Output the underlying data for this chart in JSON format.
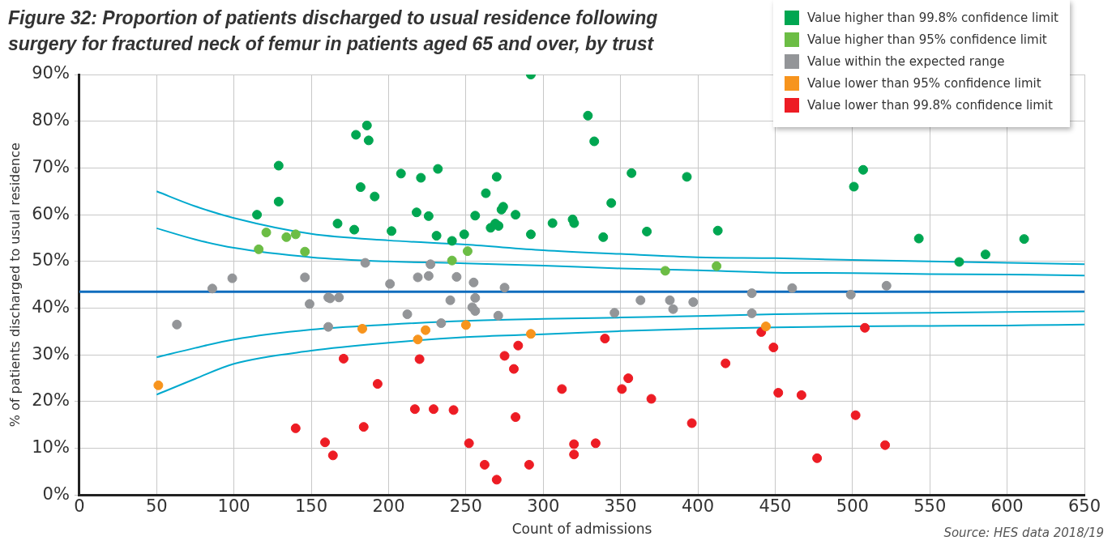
{
  "chart_data": {
    "type": "scatter",
    "title": "Figure 32: Proportion of patients discharged to usual residence following surgery for fractured neck of femur in patients aged 65 and over, by trust",
    "xlabel": "Count of admissions",
    "ylabel": "% of patients discharged to usual residence",
    "annotations": [
      "Source: HES data 2018/19"
    ],
    "xlim": [
      0,
      650
    ],
    "xticks": [
      0,
      50,
      100,
      150,
      200,
      250,
      300,
      350,
      400,
      450,
      500,
      550,
      600,
      650
    ],
    "ylim": [
      0,
      90
    ],
    "yticks": [
      {
        "value": 0,
        "label": "0%"
      },
      {
        "value": 10,
        "label": "10%"
      },
      {
        "value": 20,
        "label": "20%"
      },
      {
        "value": 30,
        "label": "30%"
      },
      {
        "value": 40,
        "label": "40%"
      },
      {
        "value": 50,
        "label": "50%"
      },
      {
        "value": 60,
        "label": "60%"
      },
      {
        "value": 70,
        "label": "70%"
      },
      {
        "value": 80,
        "label": "80%"
      },
      {
        "value": 90,
        "label": "90%"
      }
    ],
    "grid": true,
    "legend": "top right",
    "marker": "circle",
    "ref_lines": [
      {
        "axis": "y",
        "value": 43.5,
        "color": "#0f6cbd"
      }
    ],
    "series": [
      {
        "name": "Value higher than 99.8% confidence limit",
        "color": "#00a651",
        "x": [
          128.9,
          128.9,
          114.9,
          178.9,
          186.0,
          187.1,
          181.9,
          191.0,
          167.0,
          177.8,
          201.9,
          208.0,
          220.9,
          231.9,
          218.1,
          225.9,
          231.0,
          241.0,
          248.9,
          256.0,
          262.9,
          269.9,
          266.0,
          269.0,
          271.1,
          273.0,
          274.1,
          282.1,
          292.0,
          292.0,
          306.0,
          319.0,
          320.0,
          328.9,
          333.0,
          338.8,
          344.0,
          357.1,
          367.0,
          392.9,
          412.9,
          506.9,
          500.9,
          542.9,
          569.0,
          586.0,
          611.0
        ],
        "values": [
          70.5,
          62.8,
          60.0,
          77.1,
          79.1,
          75.9,
          65.9,
          63.9,
          58.1,
          56.8,
          56.5,
          68.8,
          67.9,
          69.8,
          60.5,
          59.7,
          55.5,
          54.4,
          55.8,
          59.8,
          64.6,
          68.1,
          57.2,
          58.1,
          57.6,
          61.1,
          61.7,
          60.0,
          90,
          55.8,
          58.2,
          59.0,
          58.2,
          81.2,
          75.7,
          55.2,
          62.5,
          68.9,
          56.4,
          68.1,
          56.6,
          69.6,
          66.0,
          54.9,
          49.9,
          51.5,
          54.8
        ]
      },
      {
        "name": "Value higher than 95% confidence limit",
        "color": "#6cbd45",
        "x": [
          120.9,
          133.9,
          139.9,
          116.0,
          145.9,
          241.0,
          251.1,
          378.9,
          412.1
        ],
        "values": [
          56.2,
          55.2,
          55.8,
          52.6,
          52.1,
          50.2,
          52.2,
          48.0,
          49.0
        ]
      },
      {
        "name": "Value within the expected range",
        "color": "#939598",
        "x": [
          184.9,
          98.9,
          86.0,
          145.9,
          200.9,
          161.0,
          162.2,
          167.9,
          148.9,
          212.1,
          63.1,
          161.0,
          227.1,
          218.9,
          225.9,
          244.0,
          255.0,
          275.0,
          239.9,
          256.0,
          254.1,
          256.0,
          270.9,
          234.0,
          346.1,
          362.9,
          381.9,
          384.0,
          397.0,
          434.9,
          434.9,
          461.0,
          498.9,
          522.0
        ],
        "values": [
          49.7,
          46.4,
          44.2,
          46.6,
          45.2,
          42.3,
          42.1,
          42.3,
          40.9,
          38.7,
          36.5,
          36.0,
          49.4,
          46.6,
          46.9,
          46.7,
          45.5,
          44.4,
          41.7,
          42.2,
          40.2,
          39.4,
          38.4,
          36.8,
          39.0,
          41.7,
          41.7,
          39.8,
          41.3,
          43.2,
          38.9,
          44.3,
          42.9,
          44.8
        ]
      },
      {
        "name": "Value lower than 95% confidence limit",
        "color": "#f7941d",
        "x": [
          51.1,
          183.0,
          223.9,
          218.9,
          250.0,
          292.0,
          444.0
        ],
        "values": [
          23.5,
          35.6,
          35.3,
          33.3,
          36.4,
          34.5,
          36.1
        ]
      },
      {
        "name": "Value lower than 99.8% confidence limit",
        "color": "#ed1c24",
        "x": [
          170.9,
          192.9,
          139.9,
          158.9,
          164.0,
          183.9,
          220.0,
          283.8,
          275.0,
          281.0,
          339.9,
          217.0,
          229.1,
          242.0,
          282.1,
          312.1,
          350.9,
          355.0,
          369.9,
          396.1,
          417.9,
          252.0,
          262.1,
          269.9,
          290.9,
          319.9,
          319.9,
          333.9,
          441.0,
          448.9,
          508.0,
          452.0,
          467.0,
          502.0,
          477.1,
          521.1
        ],
        "values": [
          29.2,
          23.8,
          14.3,
          11.3,
          8.5,
          14.6,
          29.1,
          32.0,
          29.8,
          27.0,
          33.5,
          18.4,
          18.4,
          18.2,
          16.7,
          22.7,
          22.7,
          25.0,
          20.6,
          15.4,
          28.2,
          11.1,
          6.5,
          3.3,
          6.5,
          10.9,
          8.7,
          11.1,
          34.9,
          31.6,
          35.8,
          21.9,
          21.4,
          17.1,
          7.9,
          10.7
        ]
      },
      {
        "type": "line",
        "marker": "none",
        "color": "#00a9ce",
        "x": [
          50,
          75,
          100,
          150,
          200,
          250,
          300,
          350,
          400,
          450,
          500,
          550,
          600,
          650
        ],
        "values": [
          65.0,
          61.8,
          59.3,
          55.9,
          54.5,
          53.6,
          52.4,
          51.6,
          50.9,
          50.7,
          50.3,
          50.0,
          49.7,
          49.4
        ]
      },
      {
        "type": "line",
        "marker": "none",
        "color": "#00a9ce",
        "x": [
          50,
          75,
          100,
          150,
          200,
          250,
          300,
          350,
          400,
          450,
          500,
          550,
          600,
          650
        ],
        "values": [
          57.1,
          54.7,
          52.9,
          50.9,
          50.0,
          49.6,
          49.1,
          48.5,
          48.1,
          47.6,
          47.5,
          47.3,
          47.2,
          47.0
        ]
      },
      {
        "type": "line",
        "marker": "none",
        "color": "#00a9ce",
        "x": [
          50,
          75,
          100,
          150,
          200,
          250,
          300,
          350,
          400,
          450,
          500,
          550,
          600,
          650
        ],
        "values": [
          29.5,
          31.5,
          33.3,
          35.4,
          36.5,
          37.3,
          37.7,
          38.0,
          38.3,
          38.7,
          38.9,
          39.0,
          39.2,
          39.3
        ]
      },
      {
        "type": "line",
        "marker": "none",
        "color": "#00a9ce",
        "x": [
          50,
          75,
          100,
          150,
          200,
          250,
          300,
          350,
          400,
          450,
          500,
          550,
          600,
          650
        ],
        "values": [
          21.5,
          24.9,
          28.1,
          30.9,
          32.6,
          33.8,
          34.4,
          35.1,
          35.6,
          35.9,
          36.1,
          36.2,
          36.3,
          36.5
        ]
      }
    ]
  }
}
